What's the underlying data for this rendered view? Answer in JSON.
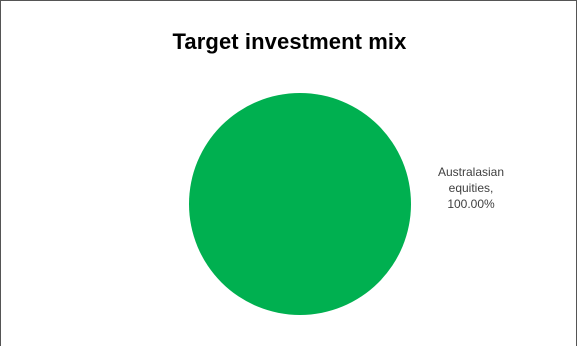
{
  "chart_data": {
    "type": "pie",
    "title": "Target investment mix",
    "slices": [
      {
        "label": "Australasian equities",
        "value": 100.0,
        "display_label_lines": [
          "Australasian",
          "equities,",
          "100.00%"
        ],
        "color": "#00B050"
      }
    ],
    "legend": "none"
  }
}
